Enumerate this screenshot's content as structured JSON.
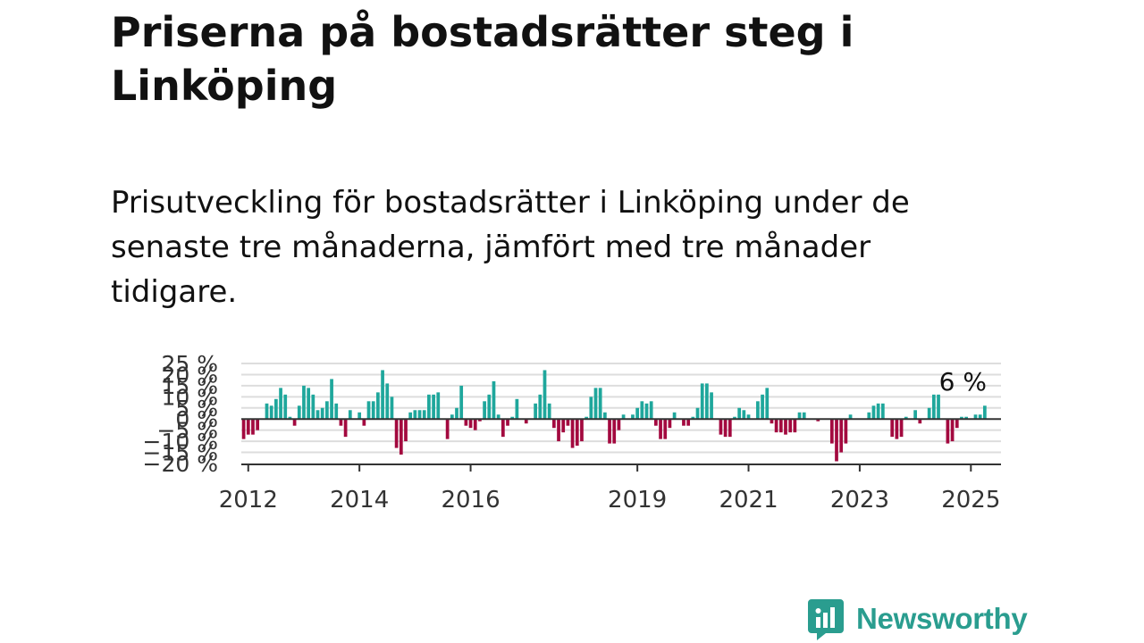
{
  "title": "Priserna på bostadsrätter steg i Linköping",
  "subtitle": "Prisutveckling för bostadsrätter i Linköping under de senaste tre månaderna, jämfört med tre månader tidigare.",
  "brand": {
    "name": "Newsworthy"
  },
  "colors": {
    "positive": "#1fa79c",
    "negative": "#a3093f",
    "grid": "#dddddd",
    "axis": "#333333",
    "text": "#111111"
  },
  "chart_data": {
    "type": "bar",
    "x_start": "2011-12",
    "x_end": "2025-07",
    "ylim": [
      -20,
      25
    ],
    "yticks": [
      25,
      20,
      15,
      10,
      5,
      0,
      -5,
      -10,
      -15,
      -20
    ],
    "ytick_labels": [
      "25 %",
      "20 %",
      "15 %",
      "10 %",
      "5 %",
      "0 %",
      "−5 %",
      "−10 %",
      "−15 %",
      "−20 %"
    ],
    "xticks": [
      "2012-01",
      "2014-01",
      "2016-01",
      "2019-01",
      "2021-01",
      "2023-01",
      "2025-01"
    ],
    "xtick_labels": [
      "2012",
      "2014",
      "2016",
      "2019",
      "2021",
      "2023",
      "2025"
    ],
    "last_value_label": "6 %",
    "values": [
      -9,
      -7,
      -7,
      -5,
      0,
      7,
      6,
      9,
      14,
      11,
      1,
      -3,
      6,
      15,
      14,
      11,
      4,
      5,
      8,
      18,
      7,
      -3,
      -8,
      4,
      0,
      3,
      -3,
      8,
      8,
      12,
      22,
      16,
      10,
      -13,
      -16,
      -10,
      3,
      4,
      4,
      4,
      11,
      11,
      12,
      0,
      -9,
      2,
      5,
      15,
      -3,
      -4,
      -5,
      -1,
      8,
      11,
      17,
      2,
      -8,
      -3,
      1,
      9,
      0,
      -2,
      0,
      7,
      11,
      22,
      7,
      -4,
      -10,
      -6,
      -3,
      -13,
      -12,
      -10,
      1,
      10,
      14,
      14,
      3,
      -11,
      -11,
      -5,
      2,
      0,
      2,
      5,
      8,
      7,
      8,
      -3,
      -9,
      -9,
      -4,
      3,
      0,
      -3,
      -3,
      1,
      5,
      16,
      16,
      12,
      0,
      -7,
      -8,
      -8,
      1,
      5,
      4,
      2,
      0,
      8,
      11,
      14,
      -2,
      -6,
      -6,
      -7,
      -6,
      -6,
      3,
      3,
      0,
      0,
      -1,
      0,
      0,
      -11,
      -19,
      -15,
      -11,
      2,
      0,
      0,
      0,
      3,
      6,
      7,
      7,
      0,
      -8,
      -9,
      -8,
      1,
      0,
      4,
      -2,
      0,
      5,
      11,
      11,
      0,
      -11,
      -10,
      -4,
      1,
      1,
      0,
      2,
      2,
      6
    ]
  }
}
